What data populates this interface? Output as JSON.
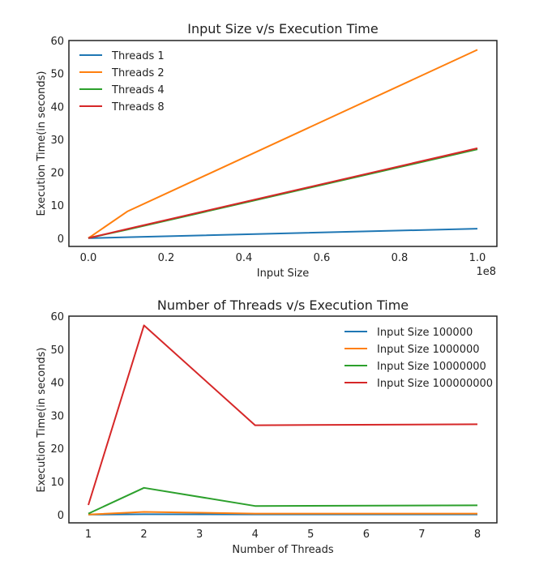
{
  "chart_data": [
    {
      "type": "line",
      "title": "Input Size v/s Execution Time",
      "xlabel": "Input Size",
      "ylabel": "Execution Time(in seconds)",
      "x_offset_label": "1e8",
      "x": [
        0,
        0.001,
        0.01,
        0.1,
        1.0
      ],
      "xticks": [
        "0.0",
        "0.2",
        "0.4",
        "0.6",
        "0.8",
        "1.0"
      ],
      "yticks": [
        "0",
        "10",
        "20",
        "30",
        "40",
        "50",
        "60"
      ],
      "xlim": [
        -0.05,
        1.05
      ],
      "ylim": [
        -2.5,
        60
      ],
      "legend_position": "upper-left",
      "grid": false,
      "series": [
        {
          "name": "Threads 1",
          "color": "#1f77b4",
          "values": [
            0.0,
            0.0,
            0.02,
            0.3,
            2.9
          ]
        },
        {
          "name": "Threads 2",
          "color": "#ff7f0e",
          "values": [
            0.0,
            0.1,
            0.8,
            8.1,
            57.2
          ]
        },
        {
          "name": "Threads 4",
          "color": "#2ca02c",
          "values": [
            0.0,
            0.05,
            0.3,
            2.6,
            27.0
          ]
        },
        {
          "name": "Threads 8",
          "color": "#d62728",
          "values": [
            0.0,
            0.05,
            0.3,
            2.8,
            27.3
          ]
        }
      ]
    },
    {
      "type": "line",
      "title": "Number of Threads v/s Execution Time",
      "xlabel": "Number of Threads",
      "ylabel": "Execution Time(in seconds)",
      "x": [
        1,
        2,
        4,
        8
      ],
      "xticks": [
        "1",
        "2",
        "3",
        "4",
        "5",
        "6",
        "7",
        "8"
      ],
      "yticks": [
        "0",
        "10",
        "20",
        "30",
        "40",
        "50",
        "60"
      ],
      "xlim": [
        0.65,
        8.35
      ],
      "ylim": [
        -2.5,
        60
      ],
      "legend_position": "upper-right",
      "grid": false,
      "series": [
        {
          "name": "Input Size 100000",
          "color": "#1f77b4",
          "values": [
            0.0,
            0.1,
            0.05,
            0.05
          ]
        },
        {
          "name": "Input Size 1000000",
          "color": "#ff7f0e",
          "values": [
            0.02,
            0.8,
            0.3,
            0.3
          ]
        },
        {
          "name": "Input Size 10000000",
          "color": "#2ca02c",
          "values": [
            0.3,
            8.1,
            2.6,
            2.8
          ]
        },
        {
          "name": "Input Size 100000000",
          "color": "#d62728",
          "values": [
            2.9,
            57.2,
            27.0,
            27.3
          ]
        }
      ]
    }
  ]
}
